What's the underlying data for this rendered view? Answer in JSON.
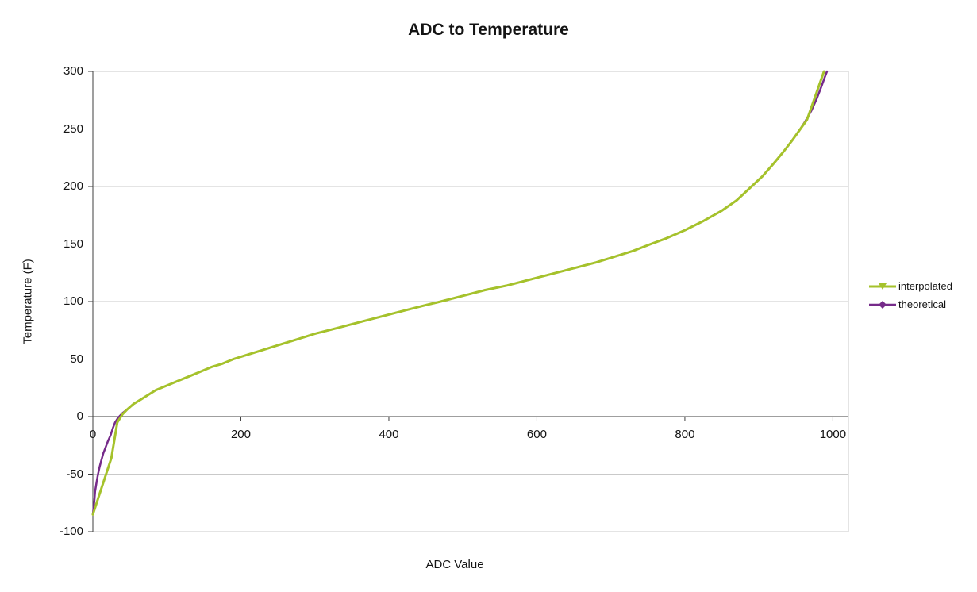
{
  "title": "ADC to Temperature",
  "axes": {
    "x_title": "ADC Value",
    "y_title": "Temperature (F)"
  },
  "legend": {
    "items": [
      {
        "label": "interpolated",
        "color": "#a5c22b",
        "marker": "triangle-down"
      },
      {
        "label": "theoretical",
        "color": "#762b8a",
        "marker": "diamond"
      }
    ]
  },
  "colors": {
    "background": "#ffffff",
    "gridline": "#c9c9c9",
    "axis": "#3f3f3f",
    "text": "#141414",
    "series_interpolated": "#a5c22b",
    "series_theoretical": "#762b8a"
  },
  "chart_data": {
    "type": "line",
    "title": "ADC to Temperature",
    "xlabel": "ADC Value",
    "ylabel": "Temperature (F)",
    "xlim": [
      0,
      1021
    ],
    "ylim": [
      -100,
      300
    ],
    "xticks": [
      0,
      200,
      400,
      600,
      800,
      1000
    ],
    "yticks": [
      300,
      250,
      200,
      150,
      100,
      50,
      0,
      -50,
      -100
    ],
    "grid": "horizontal-only",
    "legend_position": "right",
    "series": [
      {
        "name": "interpolated",
        "color": "#a5c22b",
        "marker": "triangle-down",
        "line_width": 3,
        "points": [
          [
            0,
            -85
          ],
          [
            25,
            -36
          ],
          [
            33,
            -5
          ],
          [
            40,
            2
          ],
          [
            46,
            6
          ],
          [
            55,
            11
          ],
          [
            65,
            15
          ],
          [
            75,
            19
          ],
          [
            85,
            23
          ],
          [
            100,
            27
          ],
          [
            115,
            31
          ],
          [
            130,
            35
          ],
          [
            145,
            39
          ],
          [
            160,
            43
          ],
          [
            175,
            46
          ],
          [
            190,
            50
          ],
          [
            210,
            54
          ],
          [
            230,
            58
          ],
          [
            250,
            62
          ],
          [
            275,
            67
          ],
          [
            300,
            72
          ],
          [
            330,
            77
          ],
          [
            360,
            82
          ],
          [
            390,
            87
          ],
          [
            420,
            92
          ],
          [
            450,
            97
          ],
          [
            470,
            100
          ],
          [
            500,
            105
          ],
          [
            530,
            110
          ],
          [
            560,
            114
          ],
          [
            590,
            119
          ],
          [
            620,
            124
          ],
          [
            650,
            129
          ],
          [
            680,
            134
          ],
          [
            710,
            140
          ],
          [
            730,
            144
          ],
          [
            754,
            150
          ],
          [
            775,
            155
          ],
          [
            800,
            162
          ],
          [
            825,
            170
          ],
          [
            850,
            179
          ],
          [
            870,
            188
          ],
          [
            890,
            200
          ],
          [
            905,
            209
          ],
          [
            920,
            220
          ],
          [
            933,
            230
          ],
          [
            945,
            240
          ],
          [
            955,
            249
          ],
          [
            965,
            258
          ],
          [
            988,
            300
          ]
        ]
      },
      {
        "name": "theoretical",
        "color": "#762b8a",
        "marker": "diamond",
        "line_width": 2.5,
        "points": [
          [
            0,
            -85
          ],
          [
            2,
            -73
          ],
          [
            3,
            -65
          ],
          [
            5,
            -57
          ],
          [
            7,
            -50
          ],
          [
            9,
            -44
          ],
          [
            11,
            -39
          ],
          [
            14,
            -32
          ],
          [
            17,
            -27
          ],
          [
            20,
            -22
          ],
          [
            24,
            -16
          ],
          [
            27,
            -10
          ],
          [
            30,
            -5
          ],
          [
            34,
            -1
          ],
          [
            40,
            3
          ],
          [
            46,
            6
          ],
          [
            55,
            11
          ],
          [
            65,
            15
          ],
          [
            75,
            19
          ],
          [
            85,
            23
          ],
          [
            100,
            27
          ],
          [
            115,
            31
          ],
          [
            130,
            35
          ],
          [
            145,
            39
          ],
          [
            160,
            43
          ],
          [
            175,
            46
          ],
          [
            190,
            50
          ],
          [
            210,
            54
          ],
          [
            230,
            58
          ],
          [
            250,
            62
          ],
          [
            275,
            67
          ],
          [
            300,
            72
          ],
          [
            330,
            77
          ],
          [
            360,
            82
          ],
          [
            390,
            87
          ],
          [
            420,
            92
          ],
          [
            450,
            97
          ],
          [
            470,
            100
          ],
          [
            500,
            105
          ],
          [
            530,
            110
          ],
          [
            560,
            114
          ],
          [
            590,
            119
          ],
          [
            620,
            124
          ],
          [
            650,
            129
          ],
          [
            680,
            134
          ],
          [
            710,
            140
          ],
          [
            730,
            144
          ],
          [
            754,
            150
          ],
          [
            775,
            155
          ],
          [
            800,
            162
          ],
          [
            825,
            170
          ],
          [
            850,
            179
          ],
          [
            870,
            188
          ],
          [
            890,
            200
          ],
          [
            905,
            209
          ],
          [
            920,
            220
          ],
          [
            933,
            230
          ],
          [
            945,
            240
          ],
          [
            955,
            249
          ],
          [
            963,
            257
          ],
          [
            971,
            266
          ],
          [
            978,
            276
          ],
          [
            984,
            286
          ],
          [
            989,
            295
          ],
          [
            992,
            300
          ]
        ]
      }
    ]
  }
}
